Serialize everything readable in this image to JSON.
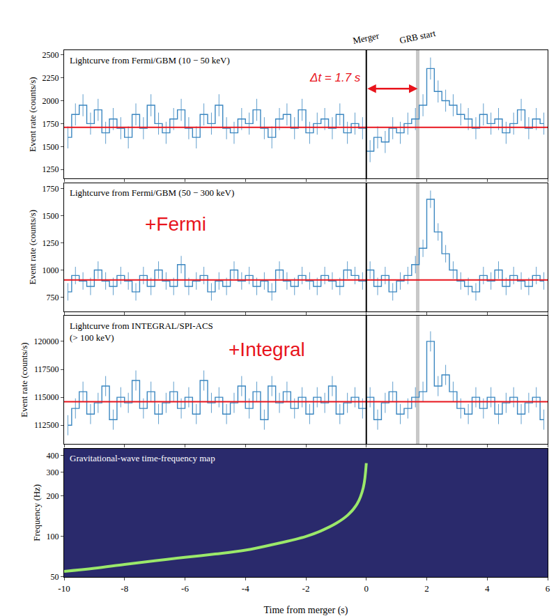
{
  "chart_data": [
    {
      "type": "line",
      "title": "Lightcurve from Fermi/GBM (10 − 50 keV)",
      "y_label": "Event rate (counts/s)",
      "x": [
        -9.875,
        -9.625,
        -9.375,
        -9.125,
        -8.875,
        -8.625,
        -8.375,
        -8.125,
        -7.875,
        -7.625,
        -7.375,
        -7.125,
        -6.875,
        -6.625,
        -6.375,
        -6.125,
        -5.875,
        -5.625,
        -5.375,
        -5.125,
        -4.875,
        -4.625,
        -4.375,
        -4.125,
        -3.875,
        -3.625,
        -3.375,
        -3.125,
        -2.875,
        -2.625,
        -2.375,
        -2.125,
        -1.875,
        -1.625,
        -1.375,
        -1.125,
        -0.875,
        -0.625,
        -0.375,
        -0.125,
        0.125,
        0.375,
        0.625,
        0.875,
        1.125,
        1.375,
        1.625,
        1.875,
        2.125,
        2.375,
        2.625,
        2.875,
        3.125,
        3.375,
        3.625,
        3.875,
        4.125,
        4.375,
        4.625,
        4.875,
        5.125,
        5.375,
        5.625,
        5.875
      ],
      "values": [
        1600,
        1850,
        1950,
        1750,
        1900,
        1650,
        1800,
        1700,
        1600,
        1850,
        1700,
        1950,
        1750,
        1650,
        1800,
        1900,
        1700,
        1600,
        1850,
        1750,
        1950,
        1700,
        1650,
        1800,
        1750,
        1900,
        1700,
        1600,
        1800,
        1850,
        1700,
        1900,
        1650,
        1750,
        1800,
        1700,
        1850,
        1650,
        1750,
        1700,
        1450,
        1600,
        1550,
        1700,
        1650,
        1750,
        1800,
        1950,
        2350,
        2100,
        2000,
        1950,
        1850,
        1800,
        1700,
        1850,
        1750,
        1800,
        1650,
        1750,
        1900,
        1700,
        1800,
        1750
      ],
      "error": 120,
      "color": "#3a86c0",
      "line_style": "step",
      "baseline": {
        "value": 1710,
        "color": "#e8141c"
      },
      "xlim": [
        -10,
        6
      ],
      "xticks": [
        -10,
        -8,
        -6,
        -4,
        -2,
        0,
        2,
        4,
        6
      ],
      "ylim": [
        1150,
        2550
      ],
      "yticks": [
        1250,
        1500,
        1750,
        2000,
        2250,
        2500
      ],
      "tick_labels": "y",
      "grid": false,
      "vlines": [
        {
          "label": "Merger",
          "x": 0,
          "color": "#000000"
        },
        {
          "label": "GRB start",
          "x": 1.7,
          "color": "#c8c8c8"
        }
      ],
      "interval": {
        "from": 0,
        "to": 1.7,
        "y": 2130,
        "label": "Δt = 1.7 s",
        "color": "#e8141c"
      }
    },
    {
      "type": "line",
      "title": "Lightcurve from Fermi/GBM (50 − 300 keV)",
      "y_label": "Event rate (counts/s)",
      "x": [
        -9.875,
        -9.625,
        -9.375,
        -9.125,
        -8.875,
        -8.625,
        -8.375,
        -8.125,
        -7.875,
        -7.625,
        -7.375,
        -7.125,
        -6.875,
        -6.625,
        -6.375,
        -6.125,
        -5.875,
        -5.625,
        -5.375,
        -5.125,
        -4.875,
        -4.625,
        -4.375,
        -4.125,
        -3.875,
        -3.625,
        -3.375,
        -3.125,
        -2.875,
        -2.625,
        -2.375,
        -2.125,
        -1.875,
        -1.625,
        -1.375,
        -1.125,
        -0.875,
        -0.625,
        -0.375,
        -0.125,
        0.125,
        0.375,
        0.625,
        0.875,
        1.125,
        1.375,
        1.625,
        1.875,
        2.125,
        2.375,
        2.625,
        2.875,
        3.125,
        3.375,
        3.625,
        3.875,
        4.125,
        4.375,
        4.625,
        4.875,
        5.125,
        5.375,
        5.625,
        5.875
      ],
      "values": [
        800,
        950,
        900,
        850,
        1000,
        900,
        850,
        950,
        900,
        800,
        950,
        850,
        1000,
        900,
        850,
        1050,
        850,
        900,
        950,
        800,
        900,
        850,
        1000,
        900,
        950,
        850,
        900,
        800,
        1000,
        900,
        850,
        950,
        900,
        850,
        950,
        900,
        850,
        1000,
        950,
        900,
        1000,
        850,
        950,
        800,
        900,
        950,
        1050,
        1200,
        1650,
        1350,
        1150,
        1000,
        900,
        850,
        800,
        950,
        900,
        1000,
        850,
        950,
        900,
        850,
        950,
        900
      ],
      "error": 80,
      "color": "#3a86c0",
      "line_style": "step",
      "baseline": {
        "value": 910,
        "color": "#e8141c"
      },
      "xlim": [
        -10,
        6
      ],
      "xticks": [
        -10,
        -8,
        -6,
        -4,
        -2,
        0,
        2,
        4,
        6
      ],
      "ylim": [
        620,
        1800
      ],
      "yticks": [
        750,
        1000,
        1250,
        1500,
        1750
      ],
      "tick_labels": "y",
      "grid": false,
      "vlines": [
        {
          "x": 0,
          "color": "#000000"
        },
        {
          "x": 1.7,
          "color": "#c8c8c8"
        }
      ],
      "annotations": [
        {
          "text": "+Fermi",
          "x": -6.3,
          "y": 1420,
          "color": "#e8141c"
        }
      ]
    },
    {
      "type": "line",
      "title": [
        "Lightcurve from INTEGRAL/SPI-ACS",
        "(> 100 keV)"
      ],
      "y_label": "Event rate (counts/s)",
      "x": [
        -9.875,
        -9.625,
        -9.375,
        -9.125,
        -8.875,
        -8.625,
        -8.375,
        -8.125,
        -7.875,
        -7.625,
        -7.375,
        -7.125,
        -6.875,
        -6.625,
        -6.375,
        -6.125,
        -5.875,
        -5.625,
        -5.375,
        -5.125,
        -4.875,
        -4.625,
        -4.375,
        -4.125,
        -3.875,
        -3.625,
        -3.375,
        -3.125,
        -2.875,
        -2.625,
        -2.375,
        -2.125,
        -1.875,
        -1.625,
        -1.375,
        -1.125,
        -0.875,
        -0.625,
        -0.375,
        -0.125,
        0.125,
        0.375,
        0.625,
        0.875,
        1.125,
        1.375,
        1.625,
        1.875,
        2.125,
        2.375,
        2.625,
        2.875,
        3.125,
        3.375,
        3.625,
        3.875,
        4.125,
        4.375,
        4.625,
        4.875,
        5.125,
        5.375,
        5.625,
        5.875
      ],
      "values": [
        112500,
        114000,
        115500,
        113500,
        114500,
        116000,
        113000,
        115000,
        114500,
        116500,
        114000,
        115500,
        113500,
        114500,
        115500,
        114000,
        115000,
        113500,
        116500,
        114500,
        115000,
        113500,
        114500,
        116000,
        114000,
        115500,
        113000,
        116000,
        114500,
        115500,
        114000,
        115000,
        113500,
        115000,
        114500,
        116000,
        113500,
        114500,
        115000,
        114000,
        115000,
        113000,
        114500,
        115500,
        113500,
        114000,
        115000,
        115500,
        120000,
        116000,
        117000,
        115500,
        114000,
        113500,
        115000,
        114000,
        115000,
        113500,
        114500,
        115000,
        113500,
        114500,
        115000,
        113000
      ],
      "error": 900,
      "color": "#3a86c0",
      "line_style": "step",
      "baseline": {
        "value": 114600,
        "color": "#e8141c"
      },
      "xlim": [
        -10,
        6
      ],
      "xticks": [
        -10,
        -8,
        -6,
        -4,
        -2,
        0,
        2,
        4,
        6
      ],
      "ylim": [
        110800,
        122300
      ],
      "yticks": [
        112500,
        115000,
        117500,
        120000
      ],
      "tick_labels": "y",
      "grid": false,
      "vlines": [
        {
          "x": 0,
          "color": "#000000"
        },
        {
          "x": 1.7,
          "color": "#c8c8c8"
        }
      ],
      "annotations": [
        {
          "text": "+Integral",
          "x": -3.3,
          "y": 119300,
          "color": "#e8141c"
        }
      ]
    },
    {
      "type": "line",
      "title": "Gravitational-wave time-frequency map",
      "x_label": "Time from merger (s)",
      "y_label": "Frequency (Hz)",
      "x": [
        -10,
        -9,
        -8,
        -7,
        -6,
        -5,
        -4,
        -3,
        -2,
        -1.5,
        -1,
        -0.6,
        -0.3,
        -0.1,
        0
      ],
      "values": [
        55,
        58,
        62,
        66,
        70,
        74,
        79,
        88,
        100,
        110,
        125,
        145,
        175,
        230,
        350
      ],
      "color": "#9be86a",
      "line_style": "solid",
      "log": "y",
      "xlim": [
        -10,
        6
      ],
      "xticks": [
        -10,
        -8,
        -6,
        -4,
        -2,
        0,
        2,
        4,
        6
      ],
      "ylim": [
        50,
        450
      ],
      "yticks": [
        50,
        100,
        200,
        300,
        400
      ],
      "grid": false
    }
  ]
}
